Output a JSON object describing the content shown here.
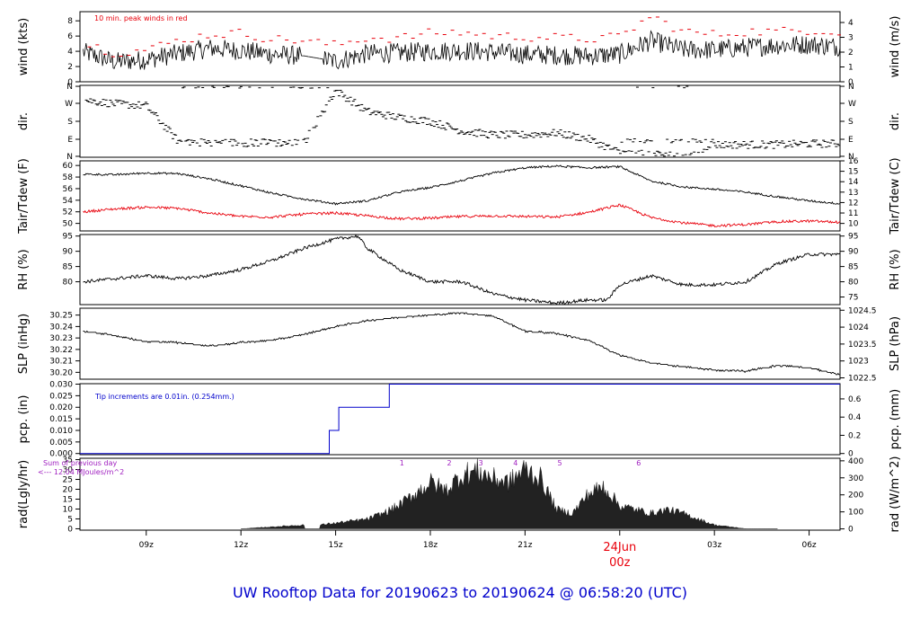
{
  "title": "UW Rooftop Data for 20190623  to  20190624 @ 06:58:20  (UTC)",
  "colors": {
    "main": "#000000",
    "dew": "#e8000b",
    "peak": "#e8000b",
    "pcp": "#0000cc",
    "rad_note": "#a020c0",
    "title": "#0000cc",
    "date": "#e8000b"
  },
  "x_axis": {
    "ticks": [
      {
        "t": 9,
        "label": "09z"
      },
      {
        "t": 12,
        "label": "12z"
      },
      {
        "t": 15,
        "label": "15z"
      },
      {
        "t": 18,
        "label": "18z"
      },
      {
        "t": 21,
        "label": "21z"
      },
      {
        "t": 27,
        "label": "03z"
      },
      {
        "t": 30,
        "label": "06z"
      }
    ],
    "midnight": {
      "t": 24,
      "date": "24Jun",
      "label": "00z"
    },
    "range_hours": [
      6.9,
      30.98
    ]
  },
  "panels": [
    {
      "id": "wind",
      "ylabel_left": "wind (kts)",
      "ylabel_right": "wind (m/s)",
      "left_ticks": [
        "0",
        "2",
        "4",
        "6",
        "8"
      ],
      "right_ticks": [
        "0",
        "1",
        "2",
        "3",
        "4"
      ],
      "note": "10 min. peak winds in red"
    },
    {
      "id": "dir",
      "ylabel_left": "dir.",
      "ylabel_right": "dir.",
      "left_ticks": [
        "N",
        "E",
        "S",
        "W",
        "N"
      ],
      "right_ticks": [
        "N",
        "E",
        "S",
        "W",
        "N"
      ]
    },
    {
      "id": "temp",
      "ylabel_left": "Tair/Tdew (F)",
      "ylabel_right": "Tair/Tdew (C)",
      "left_ticks": [
        "50",
        "52",
        "54",
        "56",
        "58",
        "60"
      ],
      "right_ticks": [
        "10",
        "11",
        "12",
        "13",
        "14",
        "15",
        "16"
      ]
    },
    {
      "id": "rh",
      "ylabel_left": "RH (%)",
      "ylabel_right": "RH (%)",
      "left_ticks": [
        "80",
        "85",
        "90",
        "95"
      ],
      "right_ticks": [
        "75",
        "80",
        "85",
        "90",
        "95"
      ]
    },
    {
      "id": "slp",
      "ylabel_left": "SLP (inHg)",
      "ylabel_right": "SLP (hPa)",
      "left_ticks": [
        "30.20",
        "30.21",
        "30.22",
        "30.23",
        "30.24",
        "30.25"
      ],
      "right_ticks": [
        "1022.5",
        "1023",
        "1023.5",
        "1024",
        "1024.5"
      ]
    },
    {
      "id": "pcp",
      "ylabel_left": "pcp. (in)",
      "ylabel_right": "pcp. (mm)",
      "left_ticks": [
        "0.000",
        "0.005",
        "0.010",
        "0.015",
        "0.020",
        "0.025",
        "0.030"
      ],
      "right_ticks": [
        "0",
        "0.2",
        "0.4",
        "0.6"
      ],
      "note": "Tip increments are 0.01in. (0.254mm.)"
    },
    {
      "id": "rad",
      "ylabel_left": "rad(Lgly/hr)",
      "ylabel_right": "rad (W/m^2)",
      "left_ticks": [
        "0",
        "5",
        "10",
        "15",
        "20",
        "25",
        "30",
        "35"
      ],
      "right_ticks": [
        "0",
        "100",
        "200",
        "300",
        "400"
      ],
      "note1": "Sum of previous day",
      "note2": "<--- 12.04 MJoules/m^2",
      "markers": [
        "1",
        "2",
        "3",
        "4",
        "5",
        "6"
      ]
    }
  ],
  "chart_data": {
    "type": "line",
    "x_unit": "hours UTC from 2019-06-23 00z",
    "wind_kts": {
      "x": [
        7,
        8,
        9,
        10,
        11,
        12,
        13,
        14,
        15,
        16,
        17,
        18,
        19,
        20,
        21,
        22,
        23,
        24,
        25,
        26,
        27,
        28,
        29,
        30,
        30.98
      ],
      "y": [
        3.9,
        2.6,
        2.9,
        3.7,
        4.4,
        4.1,
        3.6,
        3.4,
        2.7,
        3.7,
        3.8,
        4.0,
        4.1,
        3.9,
        3.6,
        3.5,
        3.4,
        3.6,
        5.4,
        4.2,
        4.2,
        4.5,
        4.8,
        4.9,
        4.6
      ]
    },
    "peak_kts": {
      "x": [
        7,
        8,
        9,
        10,
        11,
        12,
        13,
        14,
        15,
        16,
        17,
        18,
        19,
        20,
        21,
        22,
        23,
        24,
        25,
        26,
        27,
        28,
        29,
        30,
        30.98
      ],
      "y": [
        5.2,
        3.8,
        4.2,
        5.4,
        6.2,
        6.4,
        5.6,
        5.4,
        4.8,
        5.8,
        5.7,
        6.4,
        6.5,
        6.0,
        5.9,
        5.8,
        5.6,
        5.9,
        8.6,
        6.6,
        6.2,
        6.6,
        6.6,
        6.8,
        6.6
      ]
    },
    "direction": {
      "x": [
        7,
        8,
        9,
        10,
        11,
        12,
        13,
        14,
        15,
        16,
        17,
        18,
        19,
        20,
        21,
        22,
        23,
        24,
        25,
        26,
        27,
        28,
        29,
        30,
        30.98
      ],
      "y_deg": [
        290,
        270,
        260,
        80,
        70,
        70,
        70,
        70,
        340,
        230,
        200,
        180,
        130,
        110,
        110,
        120,
        90,
        20,
        10,
        10,
        60,
        60,
        60,
        65,
        65
      ]
    },
    "tair_f": {
      "x": [
        7,
        8,
        9,
        10,
        11,
        12,
        13,
        14,
        15,
        16,
        17,
        18,
        19,
        20,
        21,
        22,
        23,
        24,
        25,
        26,
        27,
        28,
        29,
        30,
        30.98
      ],
      "y": [
        58.5,
        58.4,
        58.7,
        58.6,
        57.7,
        56.5,
        55.2,
        54.2,
        53.4,
        53.9,
        55.4,
        56.2,
        57.4,
        58.7,
        59.6,
        59.9,
        59.6,
        59.8,
        57.3,
        56.3,
        55.9,
        55.4,
        54.6,
        53.9,
        53.4
      ]
    },
    "tdew_f": {
      "x": [
        7,
        8,
        9,
        10,
        11,
        12,
        13,
        14,
        15,
        16,
        17,
        18,
        19,
        20,
        21,
        22,
        23,
        24,
        25,
        26,
        27,
        28,
        29,
        30,
        30.98
      ],
      "y": [
        52.0,
        52.5,
        52.8,
        52.6,
        51.8,
        51.2,
        51.1,
        51.6,
        51.8,
        51.3,
        50.8,
        50.9,
        51.2,
        51.3,
        51.2,
        51.1,
        51.9,
        53.2,
        51.0,
        50.1,
        49.6,
        49.8,
        50.3,
        50.4,
        50.2
      ]
    },
    "rh_pct": {
      "x": [
        7,
        8,
        9,
        10,
        11,
        12,
        13,
        14,
        15,
        15.7,
        16,
        17,
        18,
        19,
        20,
        21,
        22,
        23,
        23.6,
        24,
        25,
        26,
        27,
        28,
        29,
        30,
        30.98
      ],
      "y": [
        80,
        81,
        82,
        81,
        82,
        84,
        87,
        91,
        94,
        95,
        91,
        84,
        80,
        80,
        76,
        74,
        73,
        74,
        74,
        79,
        82,
        79,
        79,
        80,
        86,
        89,
        89
      ]
    },
    "slp_inhg": {
      "x": [
        7,
        8,
        9,
        10,
        11,
        12,
        13,
        14,
        15,
        16,
        17,
        18,
        19,
        20,
        21,
        22,
        23,
        24,
        25,
        26,
        27,
        28,
        29,
        30,
        30.98
      ],
      "y": [
        30.236,
        30.232,
        30.227,
        30.226,
        30.223,
        30.226,
        30.228,
        30.233,
        30.24,
        30.245,
        30.248,
        30.25,
        30.252,
        30.249,
        30.236,
        30.234,
        30.228,
        30.215,
        30.208,
        30.205,
        30.202,
        30.201,
        30.206,
        30.204,
        30.198
      ]
    },
    "pcp_in": {
      "x": [
        6.9,
        14.8,
        14.8,
        15.1,
        15.1,
        16.7,
        16.7,
        30.98
      ],
      "y": [
        0.0,
        0.0,
        0.01,
        0.01,
        0.02,
        0.02,
        0.03,
        0.03
      ]
    },
    "rad_lgly": {
      "x": [
        12,
        13,
        14,
        14.5,
        15,
        16,
        16.5,
        17,
        17.5,
        18,
        18.5,
        19,
        19.5,
        20,
        20.5,
        21,
        21.5,
        22,
        22.5,
        23,
        23.5,
        24,
        25,
        25.5,
        26,
        26.5,
        27,
        28,
        29
      ],
      "y": [
        0,
        1,
        2,
        2,
        3,
        5,
        8,
        12,
        18,
        24,
        20,
        28,
        30,
        26,
        24,
        31,
        26,
        10,
        8,
        18,
        22,
        12,
        8,
        10,
        8,
        5,
        2,
        0,
        0
      ]
    }
  }
}
